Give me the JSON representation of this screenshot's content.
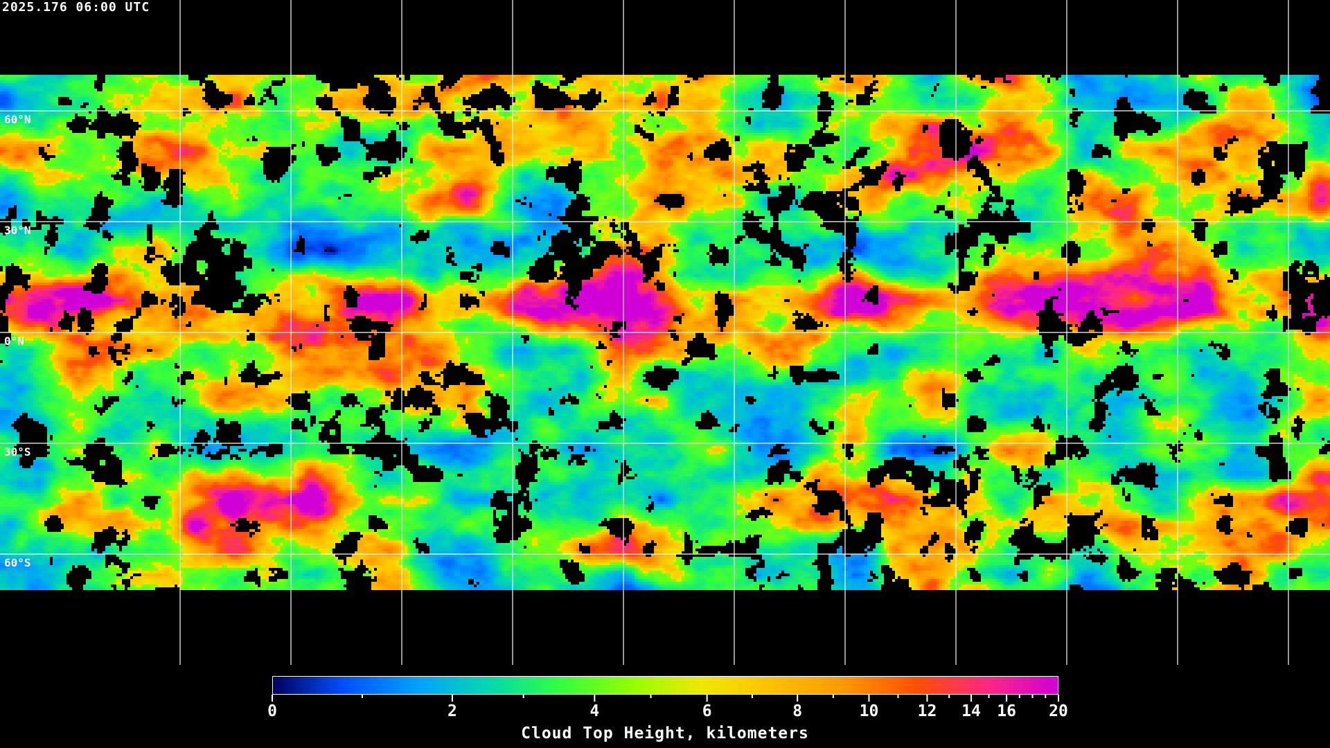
{
  "timestamp": "2025.176 06:00 UTC",
  "map": {
    "projection": "equirectangular",
    "variable": "cloud-top-height",
    "lat_labels": [
      "60°N",
      "30°N",
      "0°N",
      "30°S",
      "60°S"
    ],
    "lat_lines": [
      60,
      30,
      0,
      -30,
      -60
    ],
    "lon_line_spacing_deg": 30,
    "coastline_color": "#ffffff",
    "grid_color": "#ffffff",
    "no_data_color": "#000000"
  },
  "colorbar": {
    "title": "Cloud Top Height, kilometers",
    "range": [
      0,
      20
    ],
    "major_ticks": [
      "0",
      "2",
      "4",
      "6",
      "8",
      "10",
      "12",
      "14",
      "16",
      "20"
    ],
    "minor_ticks": [
      1,
      3,
      5,
      7,
      9,
      11,
      13,
      15,
      17,
      18,
      19
    ],
    "colors": [
      "#000060",
      "#0050ff",
      "#00a0ff",
      "#00d8b0",
      "#30ff40",
      "#90ff00",
      "#f0e800",
      "#ffc000",
      "#ff9800",
      "#ff5000",
      "#ff2880",
      "#d000d8"
    ]
  }
}
